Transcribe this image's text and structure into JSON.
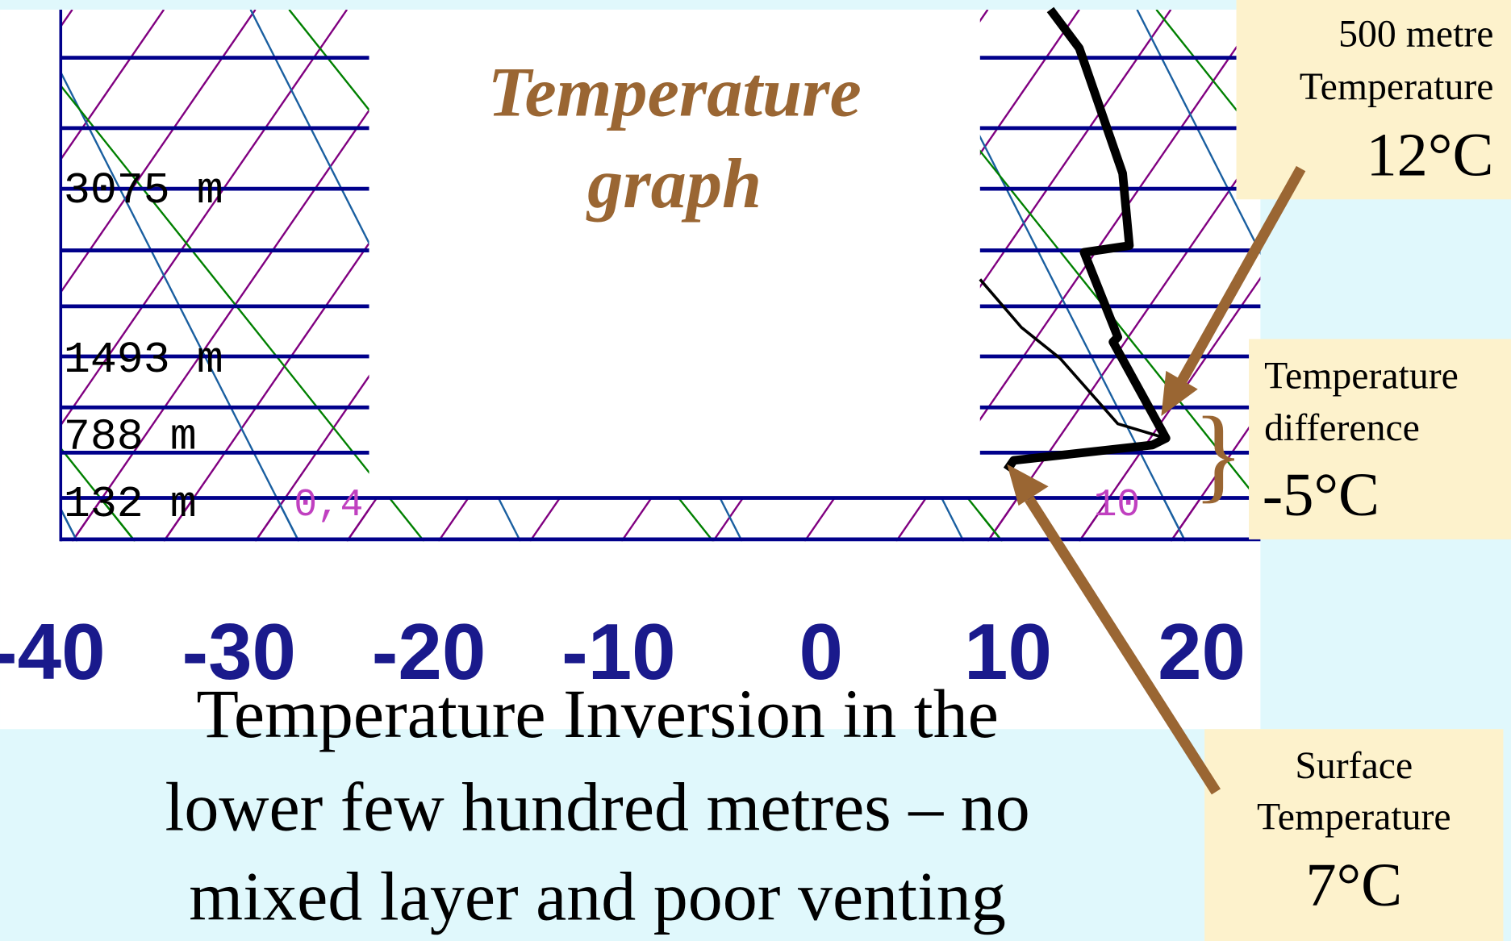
{
  "title": [
    "Temperature",
    "graph"
  ],
  "height_labels": [
    "3075 m",
    "1493 m",
    "788 m",
    "132 m"
  ],
  "isotherm_labels": [
    "0,4",
    "10"
  ],
  "x_axis_labels": [
    "-40",
    "-30",
    "-20",
    "-10",
    "0",
    "10",
    "20"
  ],
  "caption": [
    "Temperature Inversion in the",
    "lower few hundred metres – no",
    "mixed layer and poor venting"
  ],
  "callouts": [
    {
      "lines": [
        "500 metre",
        "Temperature"
      ],
      "value": "12°C"
    },
    {
      "lines": [
        "Temperature",
        "difference"
      ],
      "value": "-5°C"
    },
    {
      "lines": [
        "Surface",
        "Temperature"
      ],
      "value": "7°C"
    }
  ]
}
